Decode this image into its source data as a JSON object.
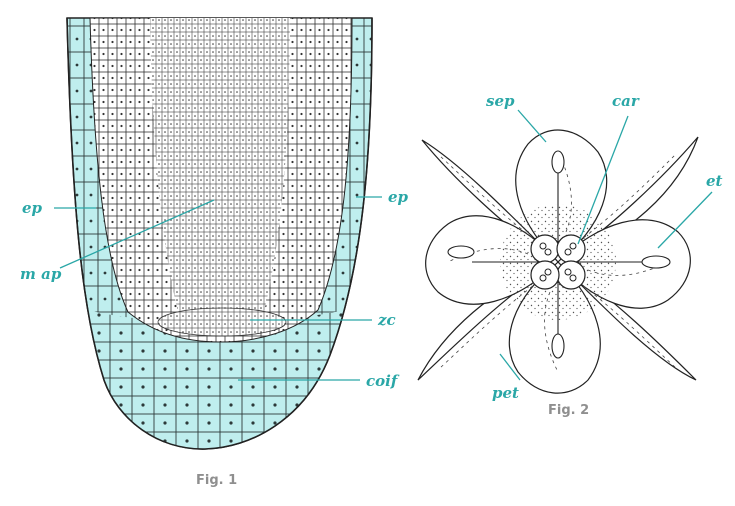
{
  "colors": {
    "accent": "#2aa7a7",
    "tissue": "#bfeeee",
    "ink": "#222222",
    "caption": "#8f8f8f"
  },
  "fig1": {
    "caption": "Fig. 1",
    "labels": {
      "ep_left": "ep",
      "ep_right": "ep",
      "m_ap": "m ap",
      "zc": "zc",
      "coif": "coif"
    }
  },
  "fig2": {
    "caption": "Fig. 2",
    "labels": {
      "sep": "sep",
      "car": "car",
      "et": "et",
      "pet": "pet"
    }
  }
}
